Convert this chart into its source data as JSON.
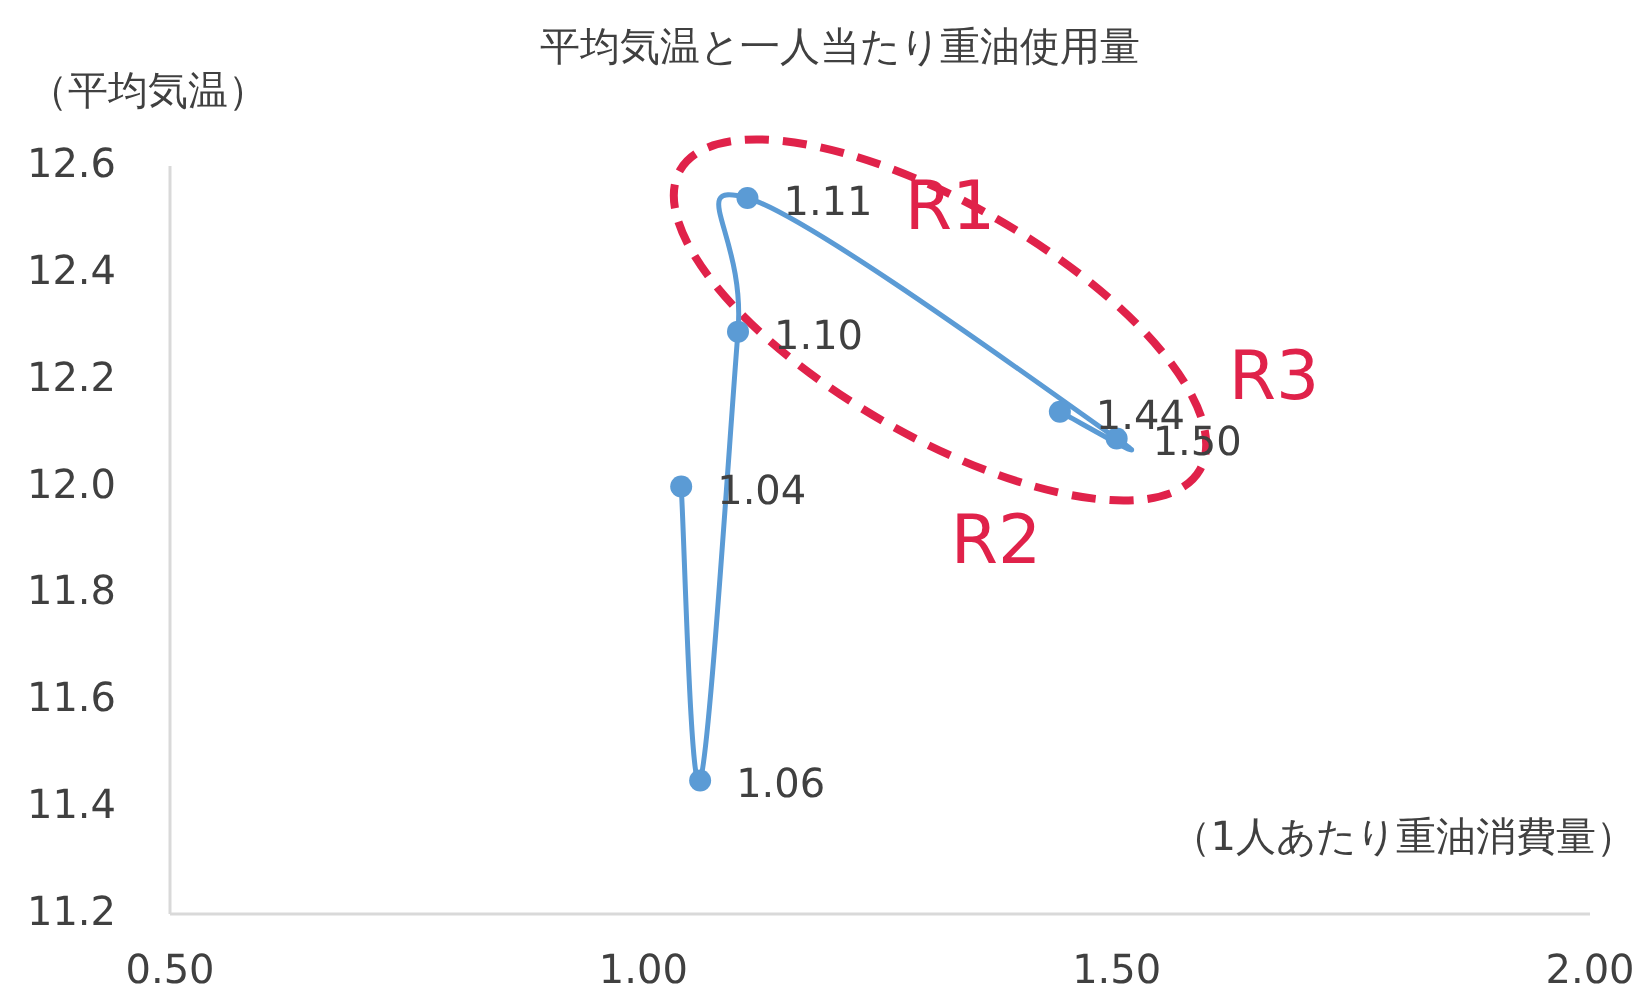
{
  "chart_data": {
    "type": "line",
    "title": "平均気温と一人当たり重油使用量",
    "xlabel": "（1人あたり重油消費量）",
    "ylabel": "（平均気温）",
    "x": [
      1.04,
      1.06,
      1.1,
      1.11,
      1.5,
      1.44
    ],
    "series": [
      {
        "color": "#5b9bd5",
        "values": [
          12.0,
          11.45,
          12.29,
          12.54,
          12.09,
          12.14
        ]
      }
    ],
    "xlim": [
      0.5,
      2.0
    ],
    "xticks": [
      {
        "value": 0.5,
        "label": "0.50"
      },
      {
        "value": 1.0,
        "label": "1.00"
      },
      {
        "value": 1.5,
        "label": "1.50"
      },
      {
        "value": 2.0,
        "label": "2.00"
      }
    ],
    "ylim": [
      11.2,
      12.6
    ],
    "yticks": [
      {
        "value": 11.2,
        "label": "11.2"
      },
      {
        "value": 11.4,
        "label": "11.4"
      },
      {
        "value": 11.6,
        "label": "11.6"
      },
      {
        "value": 11.8,
        "label": "11.8"
      },
      {
        "value": 12.0,
        "label": "12.0"
      },
      {
        "value": 12.2,
        "label": "12.2"
      },
      {
        "value": 12.4,
        "label": "12.4"
      },
      {
        "value": 12.6,
        "label": "12.6"
      }
    ],
    "marker": "circle",
    "line_style": "solid",
    "grid": false,
    "annotations": [
      {
        "text": "1.04",
        "x": 1.04,
        "y": 12.0
      },
      {
        "text": "1.06",
        "x": 1.06,
        "y": 11.45
      },
      {
        "text": "1.10",
        "x": 1.1,
        "y": 12.29
      },
      {
        "text": "1.11",
        "x": 1.11,
        "y": 12.54
      },
      {
        "text": "1.50",
        "x": 1.5,
        "y": 12.09
      },
      {
        "text": "1.44",
        "x": 1.44,
        "y": 12.14
      },
      "R1",
      "R2",
      "R3"
    ]
  }
}
